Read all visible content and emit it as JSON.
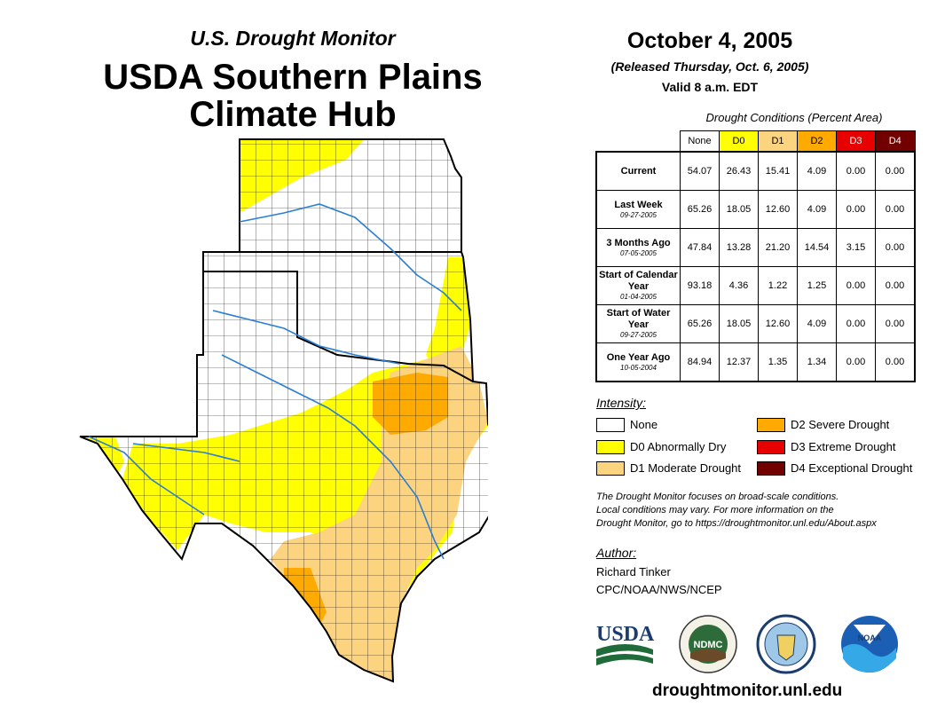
{
  "header": {
    "subtitle": "U.S. Drought Monitor",
    "title_line1": "USDA Southern Plains",
    "title_line2": "Climate Hub"
  },
  "report": {
    "date": "October 4, 2005",
    "released": "(Released Thursday, Oct. 6, 2005)",
    "valid": "Valid 8 a.m. EDT"
  },
  "table": {
    "caption": "Drought Conditions (Percent Area)",
    "columns": [
      "None",
      "D0",
      "D1",
      "D2",
      "D3",
      "D4"
    ],
    "column_colors": [
      "#ffffff",
      "#ffff00",
      "#fcd37f",
      "#ffaa00",
      "#e60000",
      "#730000"
    ],
    "rows": [
      {
        "label": "Current",
        "date": "",
        "values": [
          "54.07",
          "26.43",
          "15.41",
          "4.09",
          "0.00",
          "0.00"
        ]
      },
      {
        "label": "Last Week",
        "date": "09-27-2005",
        "values": [
          "65.26",
          "18.05",
          "12.60",
          "4.09",
          "0.00",
          "0.00"
        ]
      },
      {
        "label": "3 Months Ago",
        "date": "07-05-2005",
        "values": [
          "47.84",
          "13.28",
          "21.20",
          "14.54",
          "3.15",
          "0.00"
        ]
      },
      {
        "label": "Start of Calendar Year",
        "date": "01-04-2005",
        "values": [
          "93.18",
          "4.36",
          "1.22",
          "1.25",
          "0.00",
          "0.00"
        ]
      },
      {
        "label": "Start of Water Year",
        "date": "09-27-2005",
        "values": [
          "65.26",
          "18.05",
          "12.60",
          "4.09",
          "0.00",
          "0.00"
        ]
      },
      {
        "label": "One Year Ago",
        "date": "10-05-2004",
        "values": [
          "84.94",
          "12.37",
          "1.35",
          "1.34",
          "0.00",
          "0.00"
        ]
      }
    ]
  },
  "legend": {
    "title": "Intensity:",
    "items": [
      {
        "label": "None",
        "color": "#ffffff"
      },
      {
        "label": "D0 Abnormally Dry",
        "color": "#ffff00"
      },
      {
        "label": "D1 Moderate Drought",
        "color": "#fcd37f"
      },
      {
        "label": "D2 Severe Drought",
        "color": "#ffaa00"
      },
      {
        "label": "D3 Extreme Drought",
        "color": "#e60000"
      },
      {
        "label": "D4 Exceptional Drought",
        "color": "#730000"
      }
    ]
  },
  "note": {
    "line1": "The Drought Monitor focuses on broad-scale conditions.",
    "line2": "Local conditions may vary. For more information on the",
    "line3": "Drought Monitor, go to https://droughtmonitor.unl.edu/About.aspx"
  },
  "author": {
    "title": "Author:",
    "name": "Richard Tinker",
    "org": "CPC/NOAA/NWS/NCEP"
  },
  "logos": {
    "usda": "USDA",
    "ndmc": "NDMC",
    "noaa": "NOAA"
  },
  "footer_url": "droughtmonitor.unl.edu"
}
